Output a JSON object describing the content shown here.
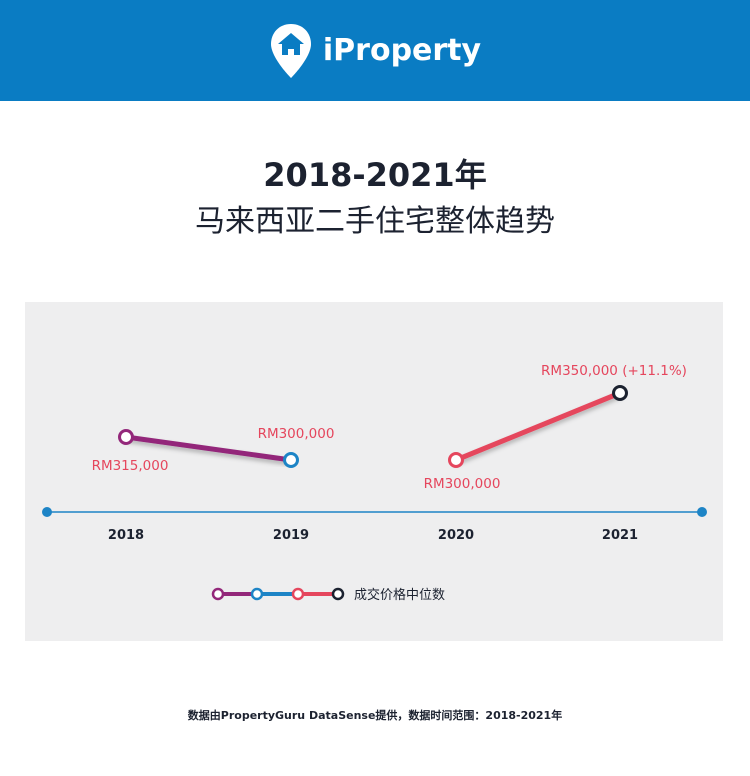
{
  "brand": {
    "name": "iProperty",
    "icon": "home-pin-icon"
  },
  "title": {
    "line1": "2018-2021年",
    "line2": "马来西亚二手住宅整体趋势"
  },
  "legend": {
    "label": "成交价格中位数"
  },
  "footnote": "数据由PropertyGuru DataSense提供，数据时间范围：2018-2021年",
  "colors": {
    "header": "#0a7cc3",
    "seg_2018_2019": "#93277a",
    "seg_2019_2020": "#1d84c6",
    "seg_2020_2021": "#e5465d",
    "label": "#e5465d",
    "axis": "#1d84c6",
    "marker_2021": "#1c2230"
  },
  "chart_data": {
    "type": "line",
    "categories": [
      "2018",
      "2019",
      "2020",
      "2021"
    ],
    "series": [
      {
        "name": "成交价格中位数",
        "values": [
          315000,
          300000,
          300000,
          350000
        ]
      }
    ],
    "data_labels": [
      "RM315,000",
      "RM300,000",
      "RM300,000",
      "RM350,000 (+11.1%)"
    ],
    "grid": false,
    "legend_position": "bottom-center"
  }
}
